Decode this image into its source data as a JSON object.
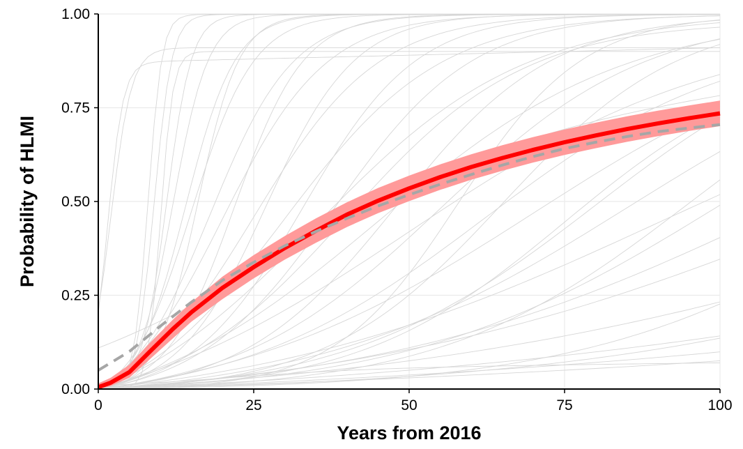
{
  "chart_data": {
    "type": "line",
    "xlabel": "Years from 2016",
    "ylabel": "Probability of HLMI",
    "xlim": [
      0,
      100
    ],
    "ylim": [
      0,
      1
    ],
    "x_ticks": [
      0,
      25,
      50,
      75,
      100
    ],
    "y_ticks": [
      0,
      0.25,
      0.5,
      0.75,
      1.0
    ],
    "x_tick_labels": [
      "0",
      "25",
      "50",
      "75",
      "100"
    ],
    "y_tick_labels": [
      "0.00",
      "0.25",
      "0.50",
      "0.75",
      "1.00"
    ],
    "grid": true,
    "legend": "none",
    "colors": {
      "aggregate": "#ff0000",
      "band": "#ff9a9a",
      "dashed": "#a6a6a6",
      "individual": "#d6d6d6",
      "grid": "#ebebeb"
    },
    "series": [
      {
        "style": "thick-solid-red",
        "x": [
          0,
          2,
          5,
          8,
          12,
          15,
          20,
          25,
          30,
          35,
          40,
          45,
          50,
          55,
          60,
          65,
          70,
          75,
          80,
          85,
          90,
          95,
          100
        ],
        "y": [
          0.005,
          0.017,
          0.045,
          0.095,
          0.16,
          0.205,
          0.27,
          0.325,
          0.376,
          0.422,
          0.465,
          0.502,
          0.535,
          0.565,
          0.592,
          0.616,
          0.638,
          0.658,
          0.676,
          0.693,
          0.708,
          0.722,
          0.735
        ]
      },
      {
        "style": "band",
        "x": [
          0,
          2,
          5,
          8,
          12,
          15,
          20,
          25,
          30,
          35,
          40,
          45,
          50,
          55,
          60,
          65,
          70,
          75,
          80,
          85,
          90,
          95,
          100
        ],
        "y_lower": [
          0.0,
          0.008,
          0.03,
          0.075,
          0.135,
          0.18,
          0.24,
          0.295,
          0.345,
          0.39,
          0.432,
          0.469,
          0.501,
          0.531,
          0.558,
          0.582,
          0.604,
          0.624,
          0.642,
          0.659,
          0.674,
          0.688,
          0.701
        ],
        "y_upper": [
          0.015,
          0.03,
          0.065,
          0.118,
          0.185,
          0.232,
          0.3,
          0.357,
          0.408,
          0.455,
          0.498,
          0.536,
          0.569,
          0.599,
          0.626,
          0.65,
          0.672,
          0.692,
          0.71,
          0.727,
          0.742,
          0.756,
          0.769
        ]
      },
      {
        "style": "dashed-gray",
        "x": [
          0,
          5,
          10,
          15,
          20,
          25,
          30,
          35,
          40,
          45,
          50,
          55,
          60,
          65,
          70,
          75,
          80,
          85,
          90,
          95,
          100
        ],
        "y": [
          0.05,
          0.1,
          0.168,
          0.232,
          0.29,
          0.338,
          0.382,
          0.42,
          0.455,
          0.488,
          0.518,
          0.546,
          0.572,
          0.597,
          0.62,
          0.641,
          0.658,
          0.673,
          0.686,
          0.696,
          0.705
        ]
      }
    ],
    "individual_curves": [
      {
        "t50": 8,
        "k": 0.9,
        "top": 0.999
      },
      {
        "t50": 9,
        "k": 0.7,
        "top": 0.999
      },
      {
        "t50": 10,
        "k": 1.0,
        "top": 0.9
      },
      {
        "t50": 11,
        "k": 0.5,
        "top": 0.999
      },
      {
        "t50": 12,
        "k": 0.35,
        "top": 0.999
      },
      {
        "t50": 14,
        "k": 0.25,
        "top": 0.999
      },
      {
        "t50": 15,
        "k": 0.2,
        "top": 0.999
      },
      {
        "t50": 16,
        "k": 0.3,
        "top": 0.999
      },
      {
        "t50": 18,
        "k": 0.15,
        "top": 0.999
      },
      {
        "t50": 20,
        "k": 0.12,
        "top": 0.999
      },
      {
        "t50": 22,
        "k": 0.18,
        "top": 0.999
      },
      {
        "t50": 25,
        "k": 0.1,
        "top": 0.999
      },
      {
        "t50": 27,
        "k": 0.14,
        "top": 0.999
      },
      {
        "t50": 30,
        "k": 0.08,
        "top": 0.999
      },
      {
        "t50": 33,
        "k": 0.11,
        "top": 0.999
      },
      {
        "t50": 35,
        "k": 0.06,
        "top": 0.999
      },
      {
        "t50": 38,
        "k": 0.09,
        "top": 0.999
      },
      {
        "t50": 40,
        "k": 0.07,
        "top": 0.98
      },
      {
        "t50": 45,
        "k": 0.05,
        "top": 0.999
      },
      {
        "t50": 48,
        "k": 0.08,
        "top": 0.999
      },
      {
        "t50": 50,
        "k": 0.04,
        "top": 0.97
      },
      {
        "t50": 55,
        "k": 0.06,
        "top": 0.999
      },
      {
        "t50": 58,
        "k": 0.1,
        "top": 0.999
      },
      {
        "t50": 62,
        "k": 0.05,
        "top": 0.95
      },
      {
        "t50": 65,
        "k": 0.07,
        "top": 0.999
      },
      {
        "t50": 70,
        "k": 0.04,
        "top": 0.999
      },
      {
        "t50": 75,
        "k": 0.06,
        "top": 0.9
      },
      {
        "t50": 80,
        "k": 0.05,
        "top": 0.999
      },
      {
        "t50": 85,
        "k": 0.04,
        "top": 0.999
      },
      {
        "t50": 90,
        "k": 0.03,
        "top": 0.95
      },
      {
        "t50": 95,
        "k": 0.05,
        "top": 0.999
      },
      {
        "t50": 100,
        "k": 0.04,
        "top": 0.999
      },
      {
        "t50": 110,
        "k": 0.03,
        "top": 0.999
      },
      {
        "t50": 120,
        "k": 0.025,
        "top": 0.999
      },
      {
        "t50": 130,
        "k": 0.04,
        "top": 0.999
      },
      {
        "t50": 150,
        "k": 0.02,
        "top": 0.999
      },
      {
        "t50": 170,
        "k": 0.025,
        "top": 0.999
      },
      {
        "t50": 200,
        "k": 0.015,
        "top": 0.999
      },
      {
        "t50": 250,
        "k": 0.012,
        "top": 0.999
      },
      {
        "t50": 300,
        "k": 0.01,
        "top": 0.999
      }
    ],
    "plateau_curves": [
      {
        "level": 0.87,
        "k": 0.8,
        "t50": 1.5,
        "slope": 0.0004
      },
      {
        "level": 0.91,
        "k": 0.6,
        "t50": 2,
        "slope": 0.0
      },
      {
        "level": 0.6,
        "k": 0.05,
        "t50": 30,
        "slope": 0.002
      },
      {
        "level": 0.05,
        "k": 0.08,
        "t50": 20,
        "slope": 0.0002
      }
    ]
  }
}
